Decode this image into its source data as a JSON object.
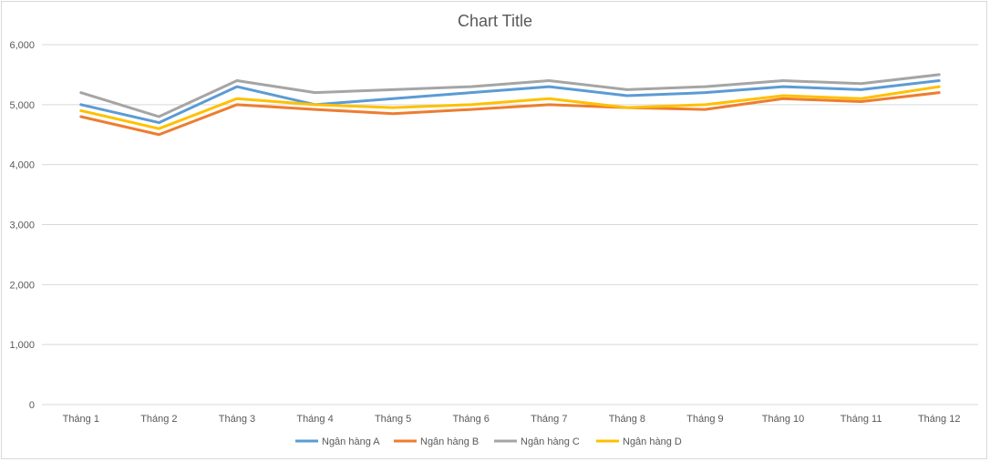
{
  "chart_data": {
    "type": "line",
    "title": "Chart Title",
    "xlabel": "",
    "ylabel": "",
    "ylim": [
      0,
      6000
    ],
    "yticks": [
      "0",
      "1,000",
      "2,000",
      "3,000",
      "4,000",
      "5,000",
      "6,000"
    ],
    "grid": true,
    "legend_position": "bottom",
    "categories": [
      "Tháng 1",
      "Tháng 2",
      "Tháng 3",
      "Tháng 4",
      "Tháng 5",
      "Tháng 6",
      "Tháng 7",
      "Tháng 8",
      "Tháng 9",
      "Tháng 10",
      "Tháng 11",
      "Tháng 12"
    ],
    "series": [
      {
        "name": "Ngân hàng A",
        "color": "#5b9bd5",
        "values": [
          5000,
          4700,
          5300,
          5000,
          5100,
          5200,
          5300,
          5150,
          5200,
          5300,
          5250,
          5400
        ]
      },
      {
        "name": "Ngân hàng B",
        "color": "#ed7d31",
        "values": [
          4800,
          4500,
          5000,
          4920,
          4850,
          4920,
          5000,
          4950,
          4920,
          5100,
          5050,
          5200
        ]
      },
      {
        "name": "Ngân hàng C",
        "color": "#a5a5a5",
        "values": [
          5200,
          4800,
          5400,
          5200,
          5250,
          5300,
          5400,
          5250,
          5300,
          5400,
          5350,
          5500
        ]
      },
      {
        "name": "Ngân hàng D",
        "color": "#ffc000",
        "values": [
          4900,
          4600,
          5100,
          5000,
          4950,
          5000,
          5100,
          4950,
          5000,
          5150,
          5100,
          5300
        ]
      }
    ]
  }
}
